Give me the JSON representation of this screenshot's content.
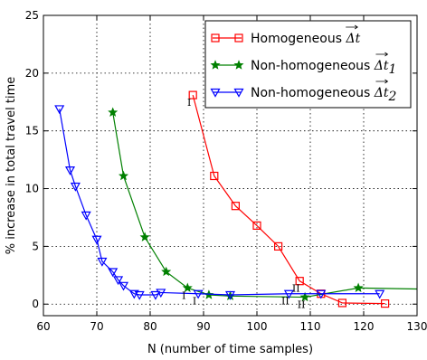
{
  "chart_data": {
    "type": "line",
    "xlabel": "N (number of time samples)",
    "ylabel": "% increase in total travel time",
    "xlim": [
      60,
      130
    ],
    "ylim": [
      -1,
      25
    ],
    "xticks": [
      60,
      70,
      80,
      90,
      100,
      110,
      120,
      130
    ],
    "yticks": [
      0,
      5,
      10,
      15,
      20,
      25
    ],
    "grid": true,
    "legend_position": "top-right",
    "series": [
      {
        "name": "Homogeneous",
        "name_math": "Δt",
        "name_subscript": "",
        "color": "#ff0000",
        "marker": "square",
        "x": [
          88,
          92,
          96,
          100,
          104,
          108,
          112,
          116,
          124
        ],
        "y": [
          18.1,
          11.1,
          8.5,
          6.8,
          5.0,
          2.0,
          0.9,
          0.1,
          0.05
        ]
      },
      {
        "name": "Non-homogeneous",
        "name_math": "Δt",
        "name_subscript": "1",
        "color": "#008000",
        "marker": "star",
        "x": [
          73,
          75,
          79,
          83,
          87,
          91,
          95,
          109,
          119,
          131
        ],
        "y": [
          16.6,
          11.1,
          5.8,
          2.8,
          1.4,
          0.8,
          0.7,
          0.6,
          1.4,
          1.3
        ]
      },
      {
        "name": "Non-homogeneous",
        "name_math": "Δt",
        "name_subscript": "2",
        "color": "#0000ff",
        "marker": "triangle-down",
        "x": [
          63,
          65,
          66,
          68,
          70,
          71,
          73,
          74,
          75,
          77,
          78,
          81,
          82,
          89,
          95,
          106,
          112,
          123
        ],
        "y": [
          16.9,
          11.6,
          10.2,
          7.7,
          5.6,
          3.7,
          2.8,
          2.1,
          1.6,
          0.9,
          0.8,
          0.8,
          1.0,
          0.9,
          0.8,
          0.9,
          0.9,
          0.9
        ]
      }
    ],
    "annotations": [
      {
        "text": "I",
        "x": 88,
        "y": 18.1
      },
      {
        "text": "I",
        "x": 87,
        "y": 1.4
      },
      {
        "text": "I",
        "x": 89,
        "y": 0.9
      },
      {
        "text": "II",
        "x": 108,
        "y": 2.0
      },
      {
        "text": "II",
        "x": 106,
        "y": 0.9
      },
      {
        "text": "II",
        "x": 109,
        "y": 0.6
      }
    ]
  }
}
